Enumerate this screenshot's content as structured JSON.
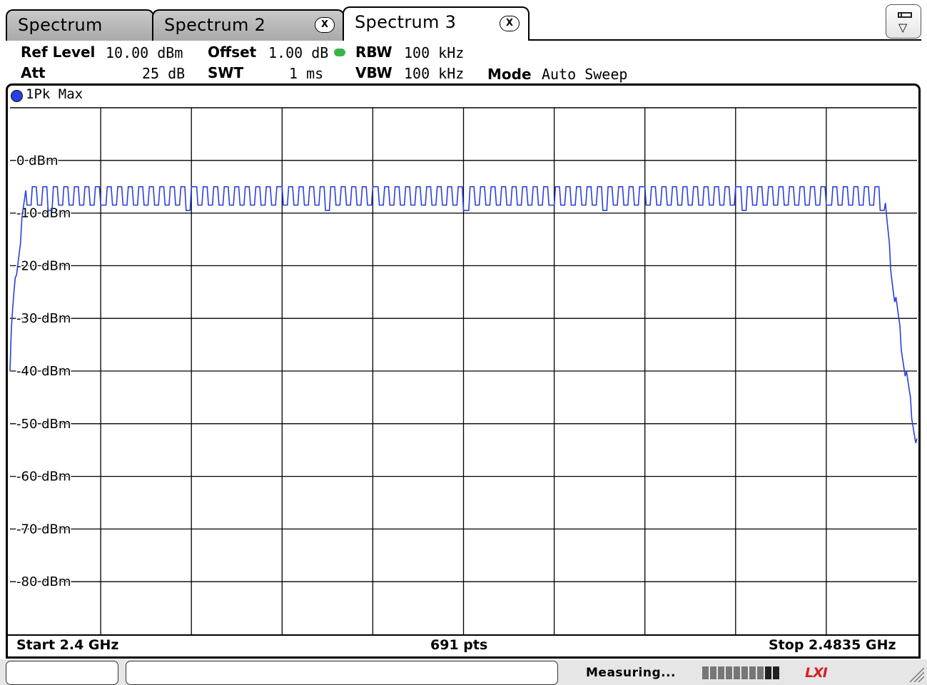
{
  "tabs": [
    {
      "label": "Spectrum",
      "active": false,
      "closable": false
    },
    {
      "label": "Spectrum 2",
      "active": false,
      "closable": true
    },
    {
      "label": "Spectrum 3",
      "active": true,
      "closable": true
    }
  ],
  "close_glyph": "X",
  "settings": {
    "ref_level_label": "Ref Level",
    "ref_level_value": "10.00 dBm",
    "offset_label": "Offset",
    "offset_value": "1.00 dB",
    "rbw_label": "RBW",
    "rbw_value": "100 kHz",
    "att_label": "Att",
    "att_value": "25 dB",
    "swt_label": "SWT",
    "swt_value": "1 ms",
    "vbw_label": "VBW",
    "vbw_value": "100 kHz",
    "mode_label": "Mode",
    "mode_value": "Auto Sweep"
  },
  "trace": {
    "label": "1Pk Max",
    "color": "#2a3ee0"
  },
  "footer": {
    "start": "Start 2.4 GHz",
    "points": "691 pts",
    "stop": "Stop 2.4835 GHz"
  },
  "status": {
    "text": "Measuring...",
    "lxi": "LXI"
  },
  "chart_data": {
    "type": "line",
    "x_range": [
      2.4,
      2.4835
    ],
    "x_unit": "GHz",
    "ylim": [
      -90,
      10
    ],
    "y_ticks": [
      "0 dBm",
      "-10 dBm",
      "-20 dBm",
      "-30 dBm",
      "-40 dBm",
      "-50 dBm",
      "-60 dBm",
      "-70 dBm",
      "-80 dBm"
    ],
    "y_tick_values": [
      0,
      -10,
      -20,
      -30,
      -40,
      -50,
      -60,
      -70,
      -80
    ],
    "x_divisions": 10,
    "grid": true,
    "points": 691,
    "series": [
      {
        "envelope": {
          "rise_start_x": 2.4,
          "rise_end_x": 2.4015,
          "plateau_end_x": 2.4805,
          "fall_end_x": 2.4835,
          "start_level": -40,
          "end_level": -54
        },
        "oscillation": {
          "max": -5,
          "min": -8.5,
          "deep_min": -9.5,
          "cycles": 85
        }
      }
    ]
  }
}
